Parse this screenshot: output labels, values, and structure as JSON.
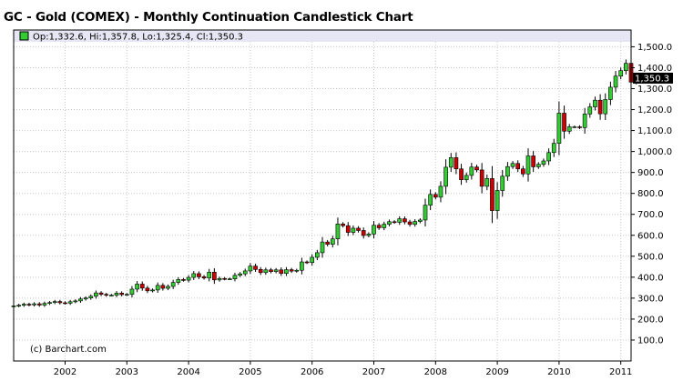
{
  "chart_data": {
    "type": "candlestick",
    "title": "GC - Gold (COMEX) - Monthly Continuation Candlestick Chart",
    "ohlc_header": "Op:1,332.6, Hi:1,357.8, Lo:1,325.4, Cl:1,350.3",
    "credit": "(c) Barchart.com",
    "last_price_label": "1,350.3",
    "last_price": 1350.3,
    "y_axis": {
      "min": 0,
      "max": 1580,
      "ticks": [
        100,
        200,
        300,
        400,
        500,
        600,
        700,
        800,
        900,
        1000,
        1100,
        1200,
        1300,
        1400,
        1500
      ],
      "tick_labels": [
        "100.0",
        "200.0",
        "300.0",
        "400.0",
        "500.0",
        "600.0",
        "700.0",
        "800.0",
        "900.0",
        "1,000.0",
        "1,100.0",
        "1,200.0",
        "1,300.0",
        "1,400.0",
        "1,500.0"
      ],
      "position": "right"
    },
    "x_axis": {
      "start": "2001-03",
      "end": "2011-03",
      "ticks": [
        "2002-01",
        "2003-01",
        "2004-01",
        "2005-01",
        "2006-01",
        "2007-01",
        "2008-01",
        "2009-01",
        "2010-01",
        "2011-01"
      ],
      "tick_labels": [
        "2002",
        "2003",
        "2004",
        "2005",
        "2006",
        "2007",
        "2008",
        "2009",
        "2010",
        "2011"
      ]
    },
    "grid": true,
    "colors": {
      "up": "#33cc33",
      "down": "#cc0000",
      "outline": "#000000",
      "grid": "#c8c8c8",
      "header_band": "#e6e6f5",
      "last_price_bg": "#000000"
    },
    "closes": [
      263,
      266,
      271,
      268,
      273,
      267,
      275,
      279,
      284,
      278,
      276,
      283,
      287,
      296,
      301,
      309,
      325,
      318,
      314,
      314,
      324,
      317,
      318,
      343,
      367,
      348,
      335,
      339,
      361,
      347,
      356,
      375,
      389,
      386,
      399,
      417,
      402,
      396,
      424,
      387,
      394,
      392,
      392,
      409,
      416,
      430,
      453,
      437,
      422,
      435,
      427,
      435,
      418,
      436,
      429,
      433,
      473,
      470,
      495,
      517,
      568,
      557,
      583,
      654,
      646,
      614,
      634,
      623,
      599,
      606,
      648,
      636,
      653,
      665,
      662,
      679,
      664,
      652,
      666,
      673,
      744,
      795,
      782,
      834,
      925,
      971,
      917,
      865,
      886,
      926,
      912,
      834,
      871,
      718,
      814,
      882,
      928,
      943,
      917,
      893,
      979,
      927,
      939,
      955,
      995,
      1039,
      1183,
      1097,
      1118,
      1118,
      1114,
      1179,
      1213,
      1245,
      1180,
      1248,
      1307,
      1360,
      1386,
      1421,
      1331,
      1350
    ],
    "series": [
      {
        "name": "",
        "start": "2001-03",
        "open": [
          262,
          263,
          266,
          271,
          268,
          273,
          267,
          275,
          279,
          284,
          278,
          276,
          283,
          287,
          296,
          301,
          309,
          325,
          318,
          314,
          314,
          324,
          317,
          318,
          343,
          367,
          348,
          335,
          339,
          361,
          347,
          356,
          375,
          389,
          386,
          399,
          417,
          402,
          396,
          424,
          387,
          394,
          392,
          392,
          409,
          416,
          430,
          453,
          437,
          422,
          435,
          427,
          435,
          418,
          436,
          429,
          433,
          473,
          470,
          495,
          517,
          568,
          557,
          583,
          654,
          646,
          614,
          634,
          623,
          599,
          606,
          648,
          636,
          653,
          665,
          662,
          679,
          664,
          652,
          666,
          673,
          744,
          795,
          782,
          834,
          925,
          971,
          917,
          865,
          886,
          926,
          912,
          834,
          871,
          718,
          814,
          882,
          928,
          943,
          917,
          893,
          979,
          927,
          939,
          955,
          995,
          1039,
          1183,
          1097,
          1118,
          1118,
          1114,
          1179,
          1213,
          1245,
          1180,
          1248,
          1307,
          1360,
          1386,
          1421,
          1332.6
        ]
      }
    ]
  }
}
